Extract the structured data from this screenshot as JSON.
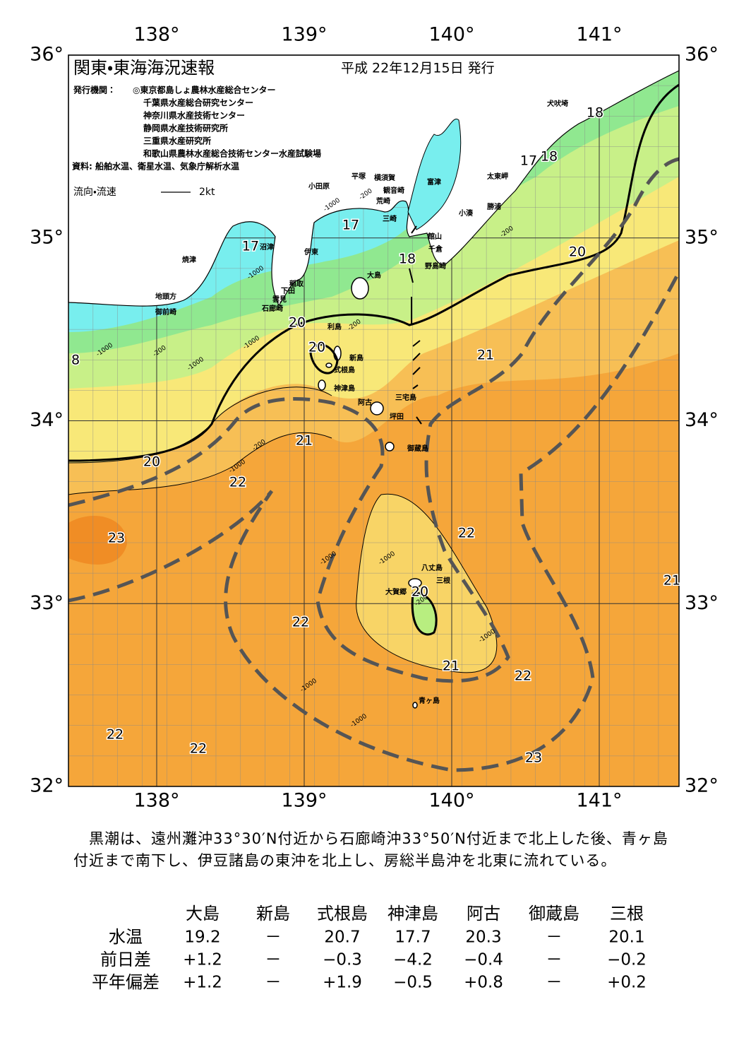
{
  "header": {
    "title": "関東・東海海況速報",
    "date": "平成 22年12月15日 発行",
    "publisher_label": "発行機関：",
    "publishers": [
      "◎東京都島しょ農林水産総合センター",
      "千葉県水産総合研究センター",
      "神奈川県水産技術センター",
      "静岡県水産技術研究所",
      "三重県水産研究所",
      "和歌山県農林水産総合技術センター水産試験場"
    ],
    "source": "資料: 船舶水温、衛星水温、気象庁解析水温"
  },
  "legend": {
    "label": "流向・流速",
    "speed": "2kt"
  },
  "map": {
    "lon_labels": [
      "138°",
      "139°",
      "140°",
      "141°"
    ],
    "lat_labels": [
      "36°",
      "35°",
      "34°",
      "33°",
      "32°"
    ],
    "places": [
      "犬吠埼",
      "太東岬",
      "勝浦",
      "小湊",
      "富津",
      "横須賀",
      "観音崎",
      "荒崎",
      "三崎",
      "平塚",
      "小田原",
      "館山",
      "千倉",
      "野島崎",
      "沼津",
      "伊東",
      "焼津",
      "大島",
      "稲取",
      "下田",
      "雲見",
      "石廊崎",
      "地頭方",
      "御前崎",
      "利島",
      "新島",
      "式根島",
      "神津島",
      "阿古",
      "三宅島",
      "坪田",
      "御蔵島",
      "八丈島",
      "三根",
      "大賀郷",
      "青ヶ島"
    ],
    "isotherms": [
      "18",
      "17",
      "18",
      "17",
      "17",
      "18",
      "20",
      "20",
      "20",
      "21",
      "8",
      "21",
      "20",
      "22",
      "23",
      "22",
      "21",
      "20",
      "22",
      "21",
      "22",
      "22",
      "22",
      "23"
    ],
    "depth_labels": [
      "-200",
      "-1000",
      "-200",
      "-1000",
      "-200",
      "-1000",
      "-200",
      "-1000",
      "-200",
      "-1000",
      "-1000",
      "-1000",
      "-1000",
      "-1000",
      "-1000",
      "-1000",
      "-200"
    ]
  },
  "description": "黒潮は、遠州灘沖33°30′N付近から石廊崎沖33°50′N付近まで北上した後、青ヶ島付近まで南下し、伊豆諸島の東沖を北上し、房総半島沖を北東に流れている。",
  "table": {
    "columns": [
      "大島",
      "新島",
      "式根島",
      "神津島",
      "阿古",
      "御蔵島",
      "三根"
    ],
    "rows": [
      {
        "label": "水温",
        "values": [
          "19.2",
          "－",
          "20.7",
          "17.7",
          "20.3",
          "－",
          "20.1"
        ]
      },
      {
        "label": "前日差",
        "values": [
          "+1.2",
          "－",
          "−0.3",
          "−4.2",
          "−0.4",
          "－",
          "−0.2"
        ]
      },
      {
        "label": "平年偏差",
        "values": [
          "+1.2",
          "－",
          "+1.9",
          "−0.5",
          "+0.8",
          "－",
          "+0.2"
        ]
      }
    ]
  }
}
